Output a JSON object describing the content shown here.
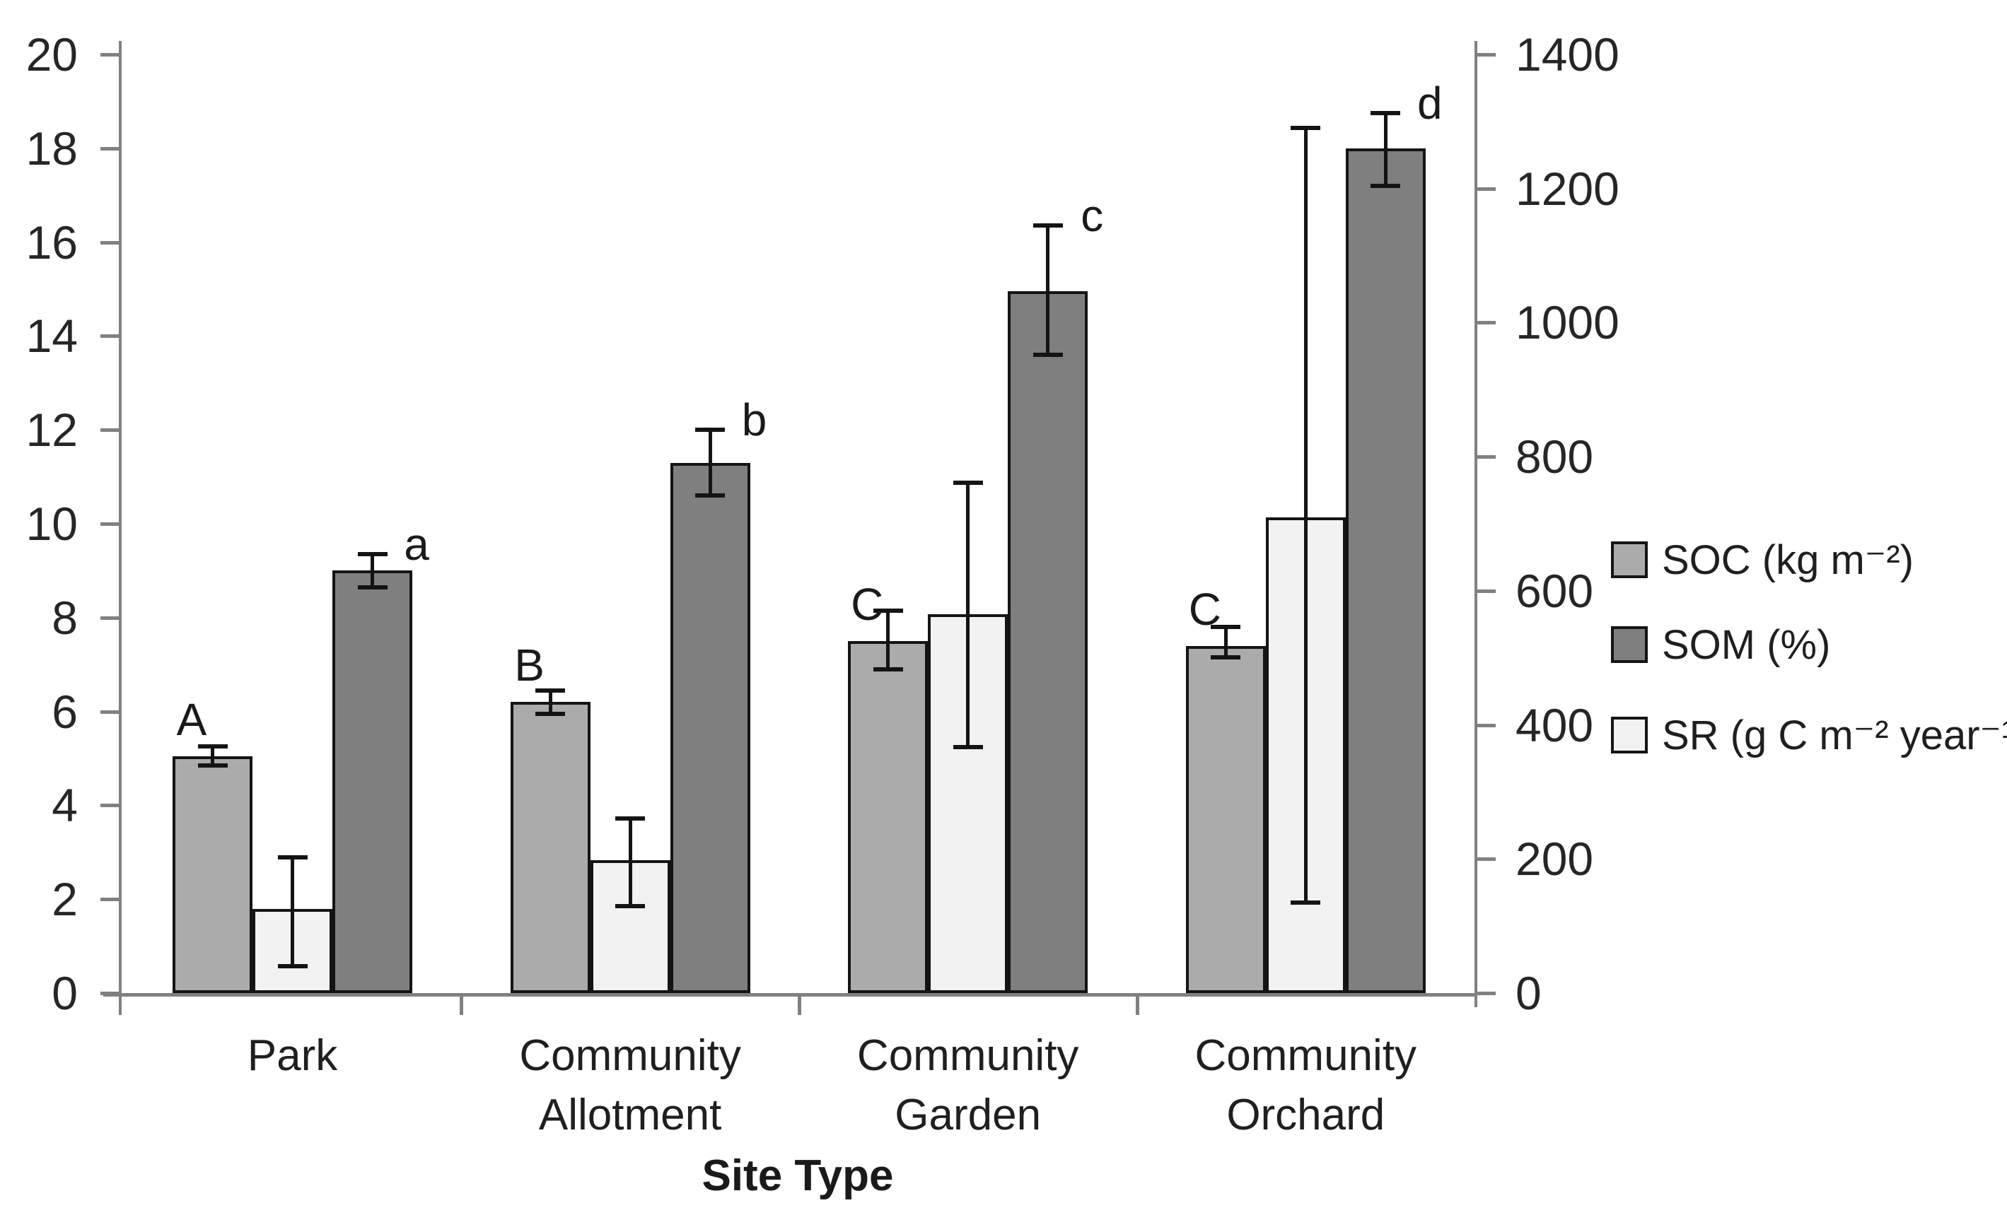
{
  "chart_data": {
    "type": "bar",
    "subtype": "grouped-dual-axis",
    "title": "",
    "xlabel": "Site Type",
    "categories": [
      "Park",
      "Community\nAllotment",
      "Community\nGarden",
      "Community\nOrchard"
    ],
    "left_axis": {
      "min": 0,
      "max": 20,
      "tick_step": 2,
      "tick_labels": [
        "0",
        "2",
        "4",
        "6",
        "8",
        "10",
        "12",
        "14",
        "16",
        "18",
        "20"
      ]
    },
    "right_axis": {
      "min": 0,
      "max": 1400,
      "tick_step": 200,
      "tick_labels": [
        "0",
        "200",
        "400",
        "600",
        "800",
        "1000",
        "1200",
        "1400"
      ]
    },
    "grid": false,
    "legend_position": "right",
    "bar_order": [
      "SOC",
      "SR",
      "SOM"
    ],
    "legend_order": [
      "SOC",
      "SOM",
      "SR"
    ],
    "series": [
      {
        "name": "SOC",
        "legend_label": "SOC (kg m⁻²)",
        "axis": "left",
        "color": "#ababab",
        "values": [
          5.05,
          6.2,
          7.5,
          7.4
        ],
        "err_low": [
          4.85,
          5.95,
          6.9,
          7.15
        ],
        "err_high": [
          5.25,
          6.45,
          8.15,
          7.8
        ],
        "letters": [
          "A",
          "B",
          "C",
          "C"
        ]
      },
      {
        "name": "SOM",
        "legend_label": "SOM (%)",
        "axis": "left",
        "color": "#7f7f7f",
        "values": [
          9.0,
          11.3,
          14.95,
          18.0
        ],
        "err_low": [
          8.65,
          10.6,
          13.6,
          17.2
        ],
        "err_high": [
          9.35,
          12.0,
          16.35,
          18.75
        ],
        "letters": [
          "a",
          "b",
          "c",
          "d"
        ]
      },
      {
        "name": "SR",
        "legend_label": "SR (g C m⁻² year⁻¹)",
        "axis": "right",
        "color": "#f2f2f2",
        "values": [
          125,
          198,
          565,
          710
        ],
        "err_low": [
          40,
          130,
          367,
          135
        ],
        "err_high": [
          202,
          260,
          761,
          1290
        ]
      }
    ],
    "colors": {
      "bar_border": "#141414",
      "axis": "#808080",
      "text": "#262626"
    }
  }
}
